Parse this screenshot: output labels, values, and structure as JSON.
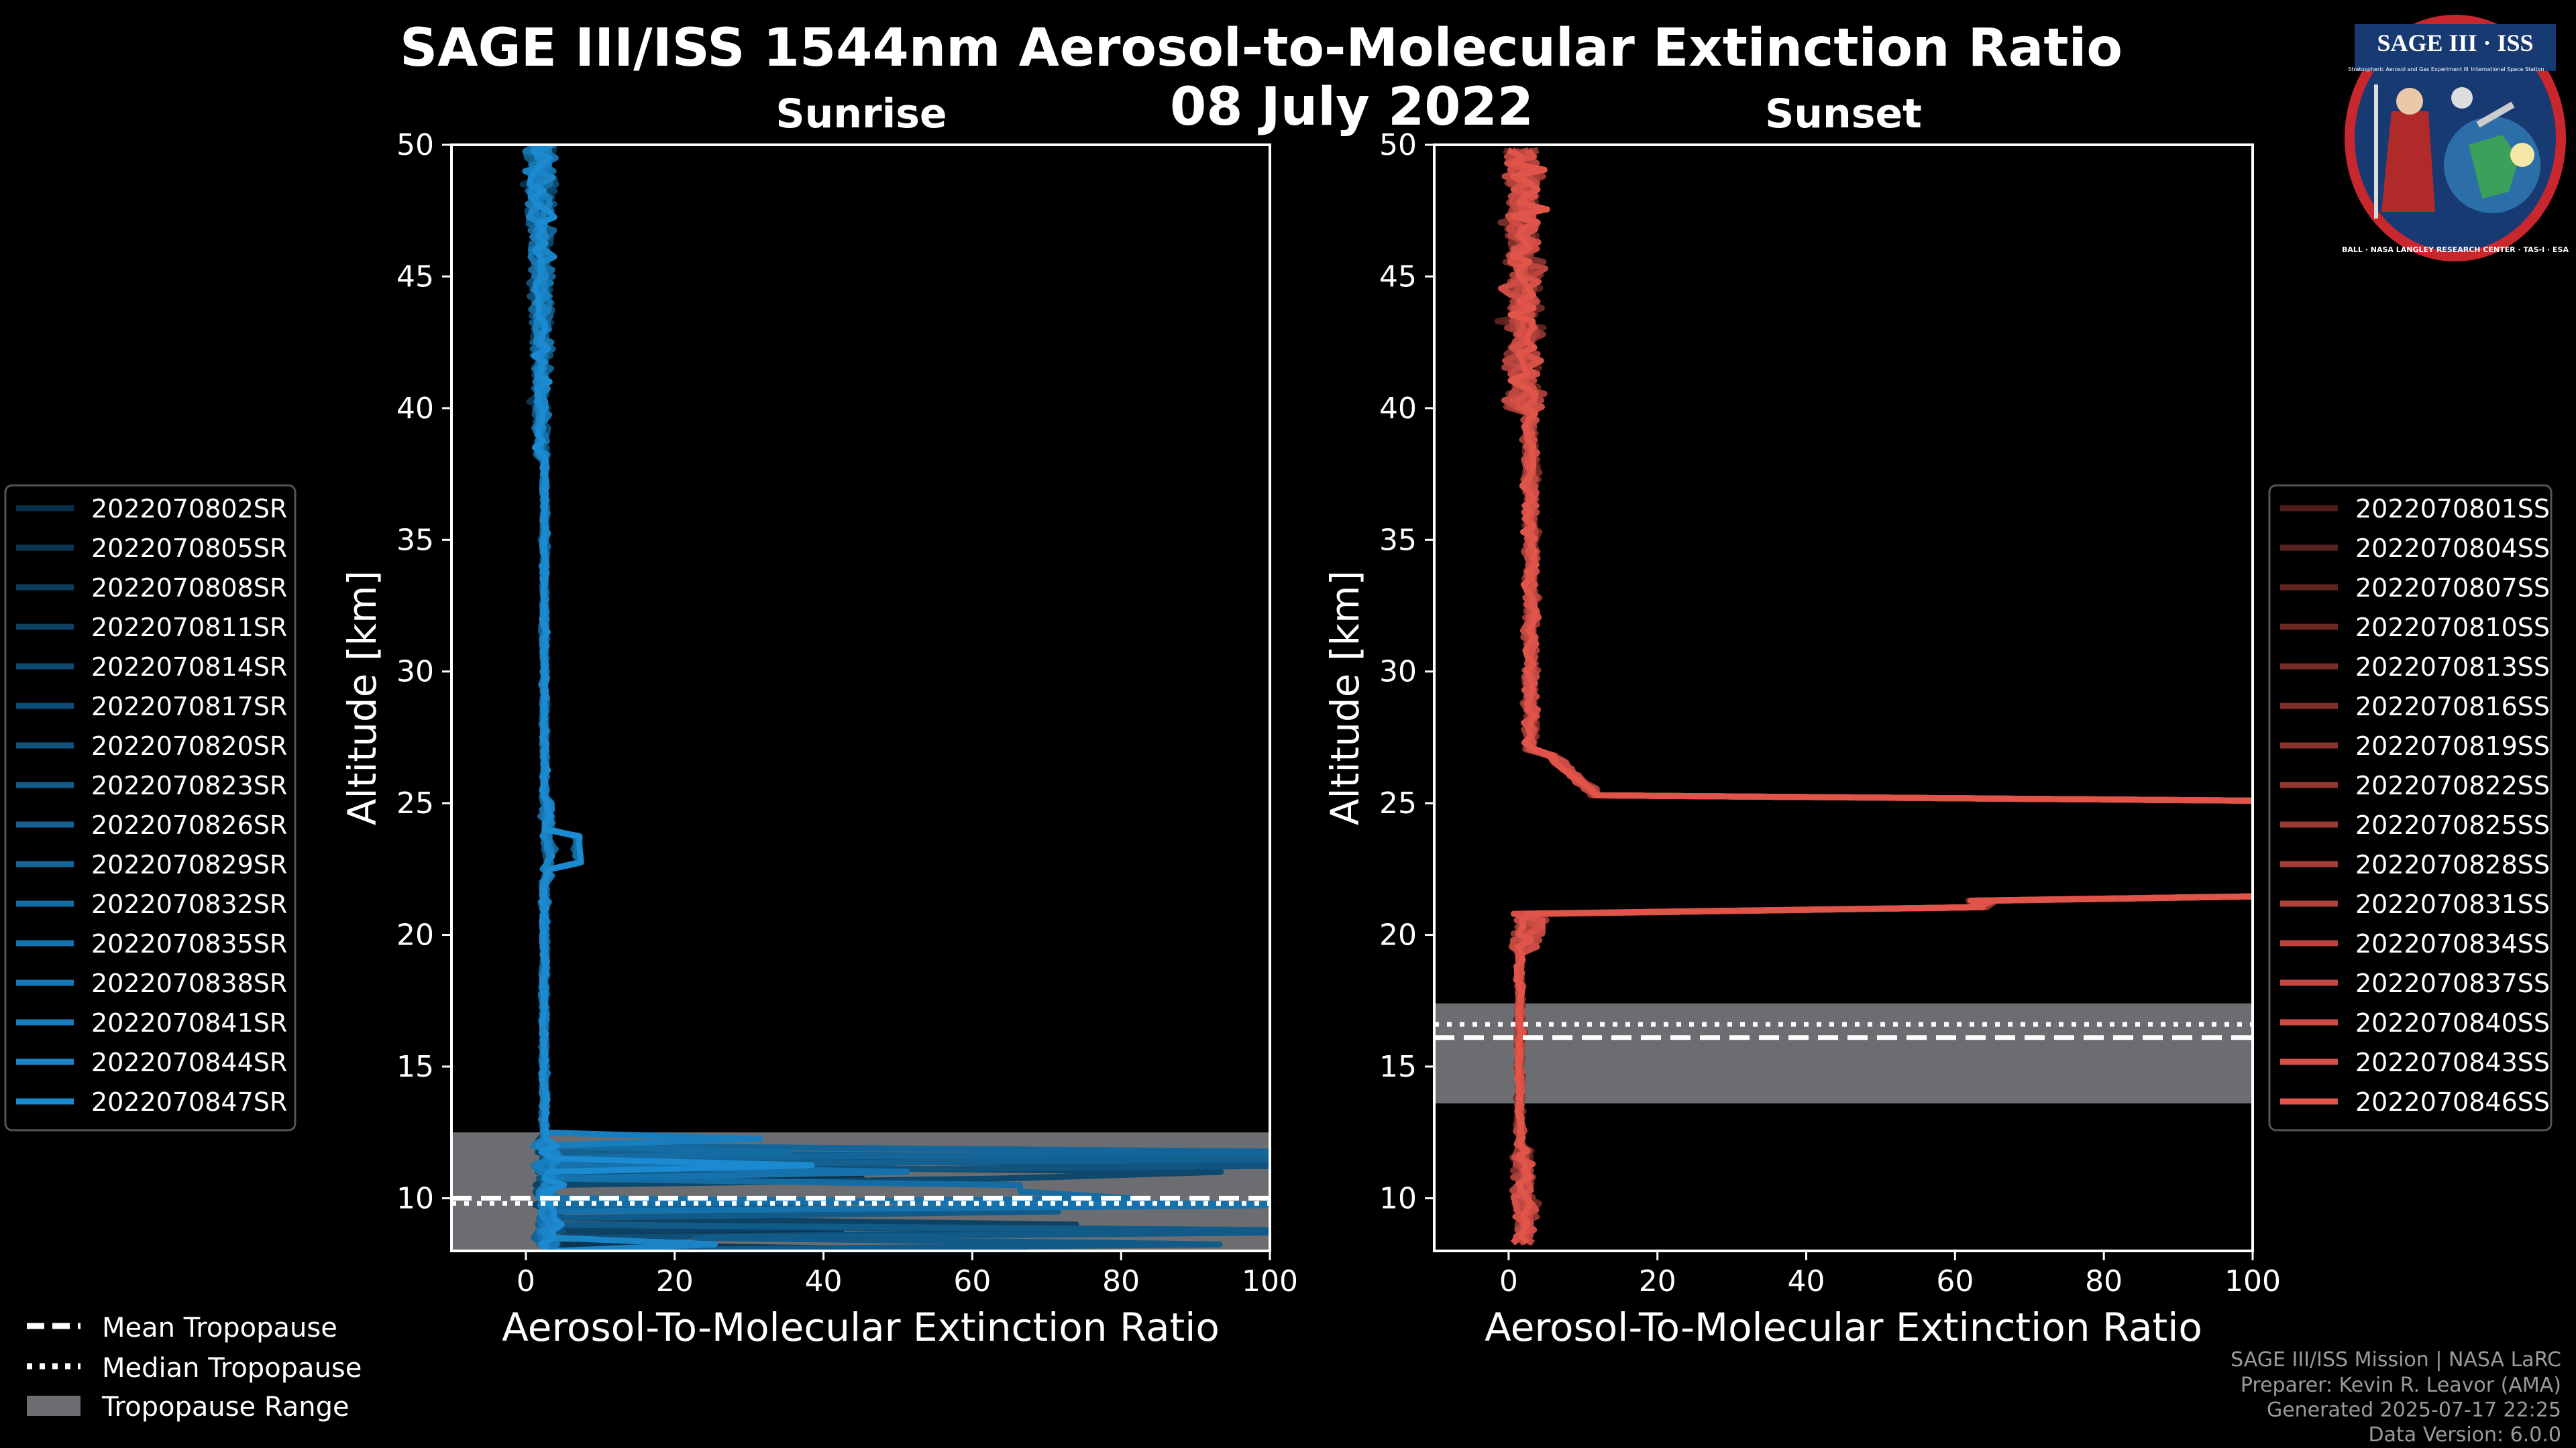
{
  "figure": {
    "title": "SAGE III/ISS 1544nm Aerosol-to-Molecular Extinction Ratio",
    "date": "08 July 2022"
  },
  "credits": [
    "SAGE III/ISS Mission | NASA LaRC",
    "Preparer: Kevin R. Leavor (AMA)",
    "Generated 2025-07-17 22:25",
    "Data Version: 6.0.0"
  ],
  "logo": {
    "name": "SAGE III · ISS",
    "ring_text": "BALL · NASA LANGLEY RESEARCH CENTER · TAS-I · ESA",
    "small_text_left": "Stratospheric Aerosol and Gas Experiment III",
    "small_text_right": "International Space Station"
  },
  "bottom_legend": [
    {
      "label": "Mean Tropopause",
      "style": "dashed"
    },
    {
      "label": "Median Tropopause",
      "style": "dotted"
    },
    {
      "label": "Tropopause Range",
      "style": "patch"
    }
  ],
  "colors": {
    "sunrise": "#1b8ad0",
    "sunset": "#e0544a",
    "tropopause_band": "#6b6d70",
    "background": "#000000",
    "axes": "#ffffff"
  },
  "chart_data": [
    {
      "type": "line",
      "id": "sunrise",
      "title": "Sunrise",
      "xlabel": "Aerosol-To-Molecular Extinction Ratio",
      "ylabel": "Altitude [km]",
      "xlim": [
        -10,
        100
      ],
      "ylim": [
        8,
        50
      ],
      "xticks": [
        0,
        20,
        40,
        60,
        80,
        100
      ],
      "yticks": [
        10,
        15,
        20,
        25,
        30,
        35,
        40,
        45,
        50
      ],
      "grid": false,
      "legend_position": "left",
      "tropopause": {
        "range": [
          8,
          12.5
        ],
        "mean": 10.0,
        "median": 9.8
      },
      "series": [
        {
          "name": "2022070802SR"
        },
        {
          "name": "2022070805SR"
        },
        {
          "name": "2022070808SR"
        },
        {
          "name": "2022070811SR"
        },
        {
          "name": "2022070814SR"
        },
        {
          "name": "2022070817SR"
        },
        {
          "name": "2022070820SR"
        },
        {
          "name": "2022070823SR"
        },
        {
          "name": "2022070826SR"
        },
        {
          "name": "2022070829SR"
        },
        {
          "name": "2022070832SR"
        },
        {
          "name": "2022070835SR"
        },
        {
          "name": "2022070838SR"
        },
        {
          "name": "2022070841SR"
        },
        {
          "name": "2022070844SR"
        },
        {
          "name": "2022070847SR"
        }
      ]
    },
    {
      "type": "line",
      "id": "sunset",
      "title": "Sunset",
      "xlabel": "Aerosol-To-Molecular Extinction Ratio",
      "ylabel": "Altitude [km]",
      "xlim": [
        -10,
        100
      ],
      "ylim": [
        8,
        50
      ],
      "xticks": [
        0,
        20,
        40,
        60,
        80,
        100
      ],
      "yticks": [
        10,
        15,
        20,
        25,
        30,
        35,
        40,
        45,
        50
      ],
      "grid": false,
      "legend_position": "right",
      "tropopause": {
        "range": [
          13.6,
          17.4
        ],
        "mean": 16.1,
        "median": 16.6
      },
      "series": [
        {
          "name": "2022070801SS"
        },
        {
          "name": "2022070804SS"
        },
        {
          "name": "2022070807SS"
        },
        {
          "name": "2022070810SS"
        },
        {
          "name": "2022070813SS"
        },
        {
          "name": "2022070816SS"
        },
        {
          "name": "2022070819SS"
        },
        {
          "name": "2022070822SS"
        },
        {
          "name": "2022070825SS"
        },
        {
          "name": "2022070828SS"
        },
        {
          "name": "2022070831SS"
        },
        {
          "name": "2022070834SS"
        },
        {
          "name": "2022070837SS"
        },
        {
          "name": "2022070840SS"
        },
        {
          "name": "2022070843SS"
        },
        {
          "name": "2022070846SS"
        }
      ]
    }
  ]
}
